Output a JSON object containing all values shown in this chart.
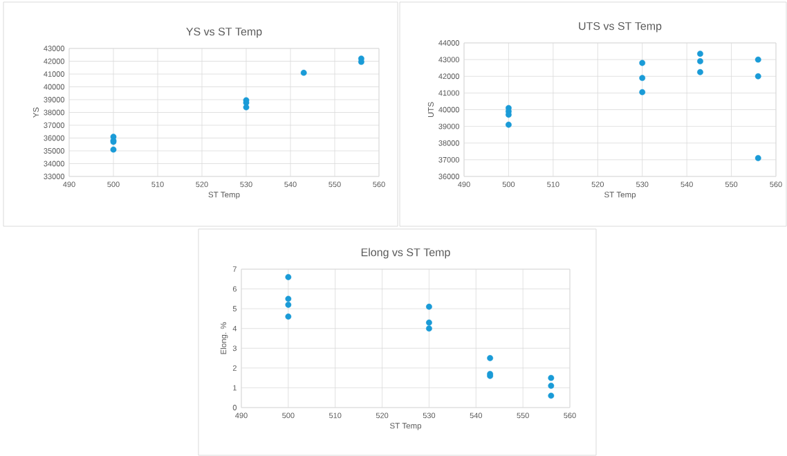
{
  "chart_data": [
    {
      "type": "scatter",
      "title": "YS vs ST Temp",
      "xlabel": "ST Temp",
      "ylabel": "YS",
      "x": [
        500,
        500,
        500,
        500,
        530,
        530,
        530,
        543,
        556,
        556
      ],
      "values": [
        36100,
        35800,
        35700,
        35100,
        38950,
        38750,
        38400,
        41100,
        42200,
        41950
      ],
      "color": "#1a9bd7",
      "grid": true,
      "xlim": [
        490,
        560
      ],
      "xticks": [
        490,
        500,
        510,
        520,
        530,
        540,
        550,
        560
      ],
      "ylim": [
        33000,
        43000
      ],
      "yticks": [
        33000,
        34000,
        35000,
        36000,
        37000,
        38000,
        39000,
        40000,
        41000,
        42000,
        43000
      ]
    },
    {
      "type": "scatter",
      "title": "UTS vs ST Temp",
      "xlabel": "ST Temp",
      "ylabel": "UTS",
      "x": [
        500,
        500,
        500,
        500,
        530,
        530,
        530,
        543,
        543,
        543,
        556,
        556,
        556
      ],
      "values": [
        40100,
        39900,
        39700,
        39100,
        42800,
        41900,
        41050,
        43350,
        42900,
        42250,
        43000,
        42000,
        37100
      ],
      "color": "#1a9bd7",
      "grid": true,
      "xlim": [
        490,
        560
      ],
      "xticks": [
        490,
        500,
        510,
        520,
        530,
        540,
        550,
        560
      ],
      "ylim": [
        36000,
        44000
      ],
      "yticks": [
        36000,
        37000,
        38000,
        39000,
        40000,
        41000,
        42000,
        43000,
        44000
      ]
    },
    {
      "type": "scatter",
      "title": "Elong vs ST Temp",
      "xlabel": "ST Temp",
      "ylabel": "Elong. %",
      "x": [
        500,
        500,
        500,
        500,
        530,
        530,
        530,
        543,
        543,
        543,
        556,
        556,
        556
      ],
      "values": [
        6.6,
        5.5,
        5.2,
        4.6,
        5.1,
        4.3,
        4.0,
        2.5,
        1.7,
        1.6,
        1.5,
        1.1,
        0.6
      ],
      "color": "#1a9bd7",
      "grid": true,
      "xlim": [
        490,
        560
      ],
      "xticks": [
        490,
        500,
        510,
        520,
        530,
        540,
        550,
        560
      ],
      "ylim": [
        0,
        7
      ],
      "yticks": [
        0,
        1,
        2,
        3,
        4,
        5,
        6,
        7
      ]
    }
  ]
}
